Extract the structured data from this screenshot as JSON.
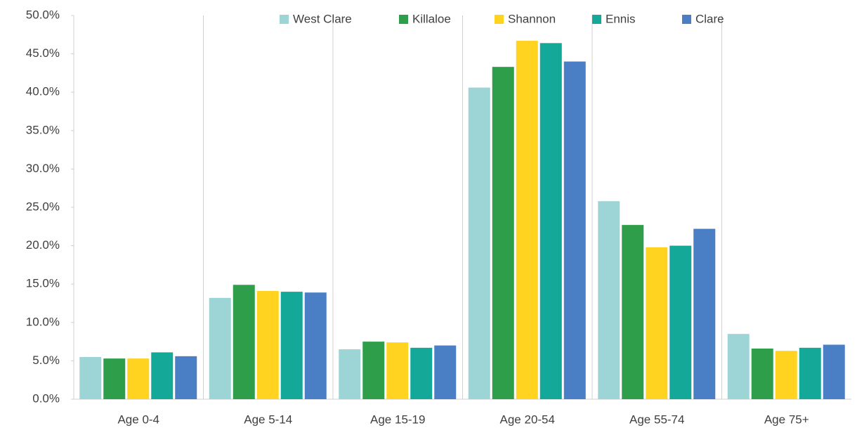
{
  "chart_data": {
    "type": "bar",
    "categories": [
      "Age 0-4",
      "Age 5-14",
      "Age 15-19",
      "Age 20-54",
      "Age 55-74",
      "Age 75+"
    ],
    "series": [
      {
        "name": "West Clare",
        "color": "#9dd5d6",
        "values": [
          5.5,
          13.2,
          6.5,
          40.6,
          25.8,
          8.5
        ]
      },
      {
        "name": "Killaloe",
        "color": "#2e9e4a",
        "values": [
          5.3,
          14.9,
          7.5,
          43.3,
          22.7,
          6.6
        ]
      },
      {
        "name": "Shannon",
        "color": "#ffd320",
        "values": [
          5.3,
          14.1,
          7.4,
          46.7,
          19.8,
          6.3
        ]
      },
      {
        "name": "Ennis",
        "color": "#13a898",
        "values": [
          6.1,
          14.0,
          6.7,
          46.4,
          20.0,
          6.7
        ]
      },
      {
        "name": "Clare",
        "color": "#4a7fc6",
        "values": [
          5.6,
          13.9,
          7.0,
          44.0,
          22.2,
          7.1
        ]
      }
    ],
    "ylim": [
      0,
      50
    ],
    "yticks": [
      {
        "value": 0,
        "label": "0.0%"
      },
      {
        "value": 5,
        "label": "5.0%"
      },
      {
        "value": 10,
        "label": "10.0%"
      },
      {
        "value": 15,
        "label": "15.0%"
      },
      {
        "value": 20,
        "label": "20.0%"
      },
      {
        "value": 25,
        "label": "25.0%"
      },
      {
        "value": 30,
        "label": "30.0%"
      },
      {
        "value": 35,
        "label": "35.0%"
      },
      {
        "value": 40,
        "label": "40.0%"
      },
      {
        "value": 45,
        "label": "45.0%"
      },
      {
        "value": 50,
        "label": "50.0%"
      }
    ],
    "legend": "top"
  }
}
